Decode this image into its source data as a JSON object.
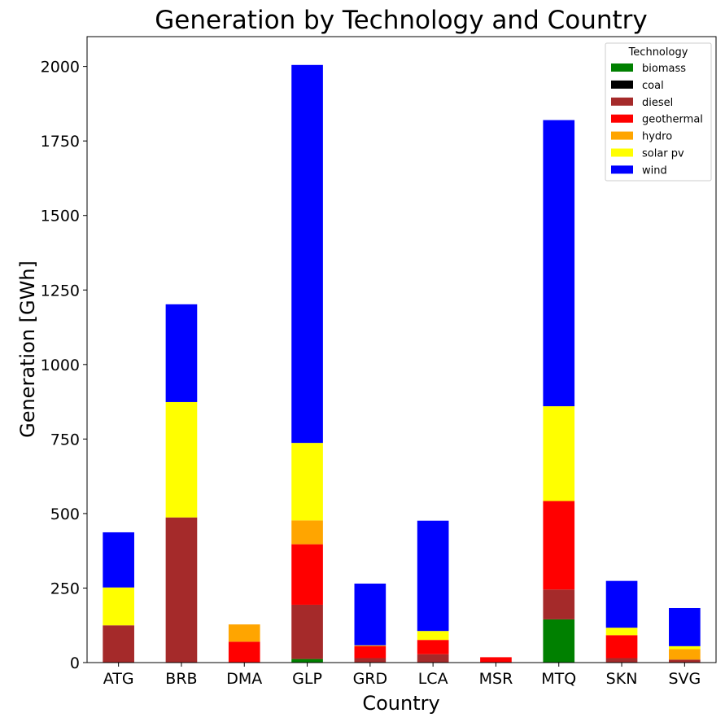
{
  "chart_data": {
    "type": "bar",
    "stacked": true,
    "title": "Generation by Technology and Country",
    "xlabel": "Country",
    "ylabel": "Generation [GWh]",
    "ylim": [
      0,
      2100
    ],
    "yticks": [
      0,
      250,
      500,
      750,
      1000,
      1250,
      1500,
      1750,
      2000
    ],
    "grid": false,
    "legend_title": "Technology",
    "legend_position": "top-right",
    "categories": [
      "ATG",
      "BRB",
      "DMA",
      "GLP",
      "GRD",
      "LCA",
      "MSR",
      "MTQ",
      "SKN",
      "SVG"
    ],
    "series": [
      {
        "name": "biomass",
        "color": "#008000",
        "values": [
          0,
          0,
          0,
          12,
          0,
          0,
          0,
          145,
          0,
          0
        ]
      },
      {
        "name": "coal",
        "color": "#000000",
        "values": [
          0,
          0,
          0,
          0,
          0,
          0,
          0,
          0,
          0,
          0
        ]
      },
      {
        "name": "diesel",
        "color": "#a52a2a",
        "values": [
          125,
          487,
          0,
          182,
          15,
          28,
          0,
          100,
          15,
          10
        ]
      },
      {
        "name": "geothermal",
        "color": "#ff0000",
        "values": [
          0,
          0,
          70,
          203,
          40,
          48,
          18,
          297,
          77,
          0
        ]
      },
      {
        "name": "hydro",
        "color": "#ffa500",
        "values": [
          0,
          0,
          58,
          80,
          3,
          0,
          0,
          0,
          0,
          35
        ]
      },
      {
        "name": "solar pv",
        "color": "#ffff00",
        "values": [
          127,
          387,
          0,
          260,
          0,
          30,
          0,
          318,
          25,
          10
        ]
      },
      {
        "name": "wind",
        "color": "#0000ff",
        "values": [
          185,
          328,
          0,
          1268,
          207,
          370,
          0,
          960,
          157,
          128
        ]
      }
    ]
  }
}
